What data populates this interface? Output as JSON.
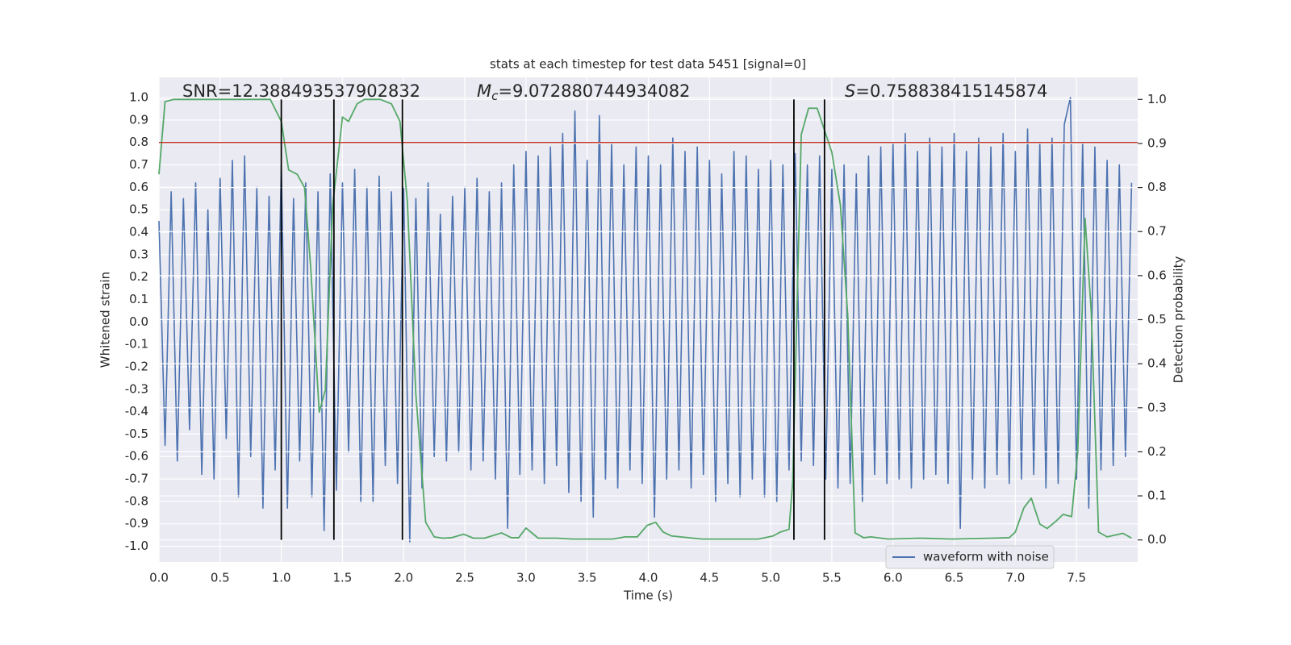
{
  "chart_data": {
    "type": "line",
    "title": "stats at each timestep for test data 5451 [signal=0]",
    "xlabel": "Time (s)",
    "ylabel": "Whitened strain",
    "y2label": "Detection probability",
    "xlim": [
      0,
      8
    ],
    "xticks": [
      {
        "value": 0,
        "label": "0.0"
      },
      {
        "value": 0.5,
        "label": "0.5"
      },
      {
        "value": 1,
        "label": "1.0"
      },
      {
        "value": 1.5,
        "label": "1.5"
      },
      {
        "value": 2,
        "label": "2.0"
      },
      {
        "value": 2.5,
        "label": "2.5"
      },
      {
        "value": 3,
        "label": "3.0"
      },
      {
        "value": 3.5,
        "label": "3.5"
      },
      {
        "value": 4,
        "label": "4.0"
      },
      {
        "value": 4.5,
        "label": "4.5"
      },
      {
        "value": 5,
        "label": "5.0"
      },
      {
        "value": 5.5,
        "label": "5.5"
      },
      {
        "value": 6,
        "label": "6.0"
      },
      {
        "value": 6.5,
        "label": "6.5"
      },
      {
        "value": 7,
        "label": "7.0"
      },
      {
        "value": 7.5,
        "label": "7.5"
      }
    ],
    "ylim": [
      -1.07,
      1.09
    ],
    "yticks": [
      {
        "value": 1,
        "label": "1.0"
      },
      0.9,
      0.8,
      0.7,
      0.6,
      0.5,
      0.4,
      0.3,
      0.2,
      0.1,
      {
        "value": 0,
        "label": "0.0"
      },
      -0.1,
      -0.2,
      -0.3,
      -0.4,
      -0.5,
      -0.6,
      -0.7,
      -0.8,
      -0.9,
      {
        "value": -1,
        "label": "-1.0"
      }
    ],
    "y2lim": [
      -0.05,
      1.05
    ],
    "y2ticks": [
      {
        "value": 0,
        "label": "0.0"
      },
      0.1,
      0.2,
      0.3,
      0.4,
      0.5,
      0.6,
      0.7,
      0.8,
      0.9,
      {
        "value": 1,
        "label": "1.0"
      }
    ],
    "grid": true,
    "legend": "lower right",
    "series": [
      {
        "name": "waveform with noise",
        "color": "#4c72b0",
        "x": [
          0,
          0.05,
          0.1,
          0.15,
          0.2,
          0.25,
          0.3,
          0.35,
          0.4,
          0.45,
          0.5,
          0.55,
          0.6,
          0.65,
          0.7,
          0.75,
          0.8,
          0.85,
          0.9,
          0.95,
          1,
          1.05,
          1.1,
          1.15,
          1.2,
          1.25,
          1.3,
          1.35,
          1.4,
          1.45,
          1.5,
          1.55,
          1.6,
          1.65,
          1.7,
          1.75,
          1.8,
          1.85,
          1.9,
          1.95,
          2,
          2.05,
          2.1,
          2.15,
          2.2,
          2.25,
          2.3,
          2.35,
          2.4,
          2.45,
          2.5,
          2.55,
          2.6,
          2.65,
          2.7,
          2.75,
          2.8,
          2.85,
          2.9,
          2.95,
          3,
          3.05,
          3.1,
          3.15,
          3.2,
          3.25,
          3.3,
          3.35,
          3.4,
          3.45,
          3.5,
          3.55,
          3.6,
          3.65,
          3.7,
          3.75,
          3.8,
          3.85,
          3.9,
          3.95,
          4,
          4.05,
          4.1,
          4.15,
          4.2,
          4.25,
          4.3,
          4.35,
          4.4,
          4.45,
          4.5,
          4.55,
          4.6,
          4.65,
          4.7,
          4.75,
          4.8,
          4.85,
          4.9,
          4.95,
          5,
          5.05,
          5.1,
          5.15,
          5.2,
          5.25,
          5.3,
          5.35,
          5.4,
          5.45,
          5.5,
          5.55,
          5.6,
          5.65,
          5.7,
          5.75,
          5.8,
          5.85,
          5.9,
          5.95,
          6,
          6.05,
          6.1,
          6.15,
          6.2,
          6.25,
          6.3,
          6.35,
          6.4,
          6.45,
          6.5,
          6.55,
          6.6,
          6.65,
          6.7,
          6.75,
          6.8,
          6.85,
          6.9,
          6.95,
          7,
          7.05,
          7.1,
          7.15,
          7.2,
          7.25,
          7.3,
          7.35,
          7.4,
          7.45,
          7.5,
          7.55,
          7.6,
          7.65,
          7.7,
          7.75,
          7.8,
          7.85,
          7.9,
          7.95
        ],
        "values": [
          0.45,
          -0.55,
          0.58,
          -0.62,
          0.55,
          -0.48,
          0.62,
          -0.68,
          0.5,
          -0.7,
          0.64,
          -0.52,
          0.72,
          -0.78,
          0.74,
          -0.6,
          0.6,
          -0.83,
          0.56,
          -0.66,
          0.7,
          -0.83,
          0.55,
          -0.62,
          0.62,
          -0.78,
          0.58,
          -0.93,
          0.66,
          -0.75,
          0.62,
          -0.58,
          0.68,
          -0.8,
          0.6,
          -0.8,
          0.65,
          -0.64,
          0.58,
          -0.72,
          0.6,
          -0.98,
          0.55,
          -0.74,
          0.62,
          -0.6,
          0.48,
          -0.62,
          0.56,
          -0.58,
          0.6,
          -0.66,
          0.64,
          -0.62,
          0.58,
          -0.7,
          0.62,
          -0.92,
          0.7,
          -0.68,
          0.76,
          -0.66,
          0.74,
          -0.72,
          0.78,
          -0.64,
          0.84,
          -0.76,
          0.94,
          -0.8,
          0.72,
          -0.87,
          0.92,
          -0.7,
          0.8,
          -0.74,
          0.7,
          -0.66,
          0.78,
          -0.72,
          0.74,
          -0.87,
          0.7,
          -0.7,
          0.82,
          -0.66,
          0.76,
          -0.74,
          0.78,
          -0.68,
          0.72,
          -0.8,
          0.66,
          -0.72,
          0.76,
          -0.78,
          0.74,
          -0.7,
          0.68,
          -0.78,
          0.72,
          -0.8,
          0.7,
          -0.66,
          0.75,
          -0.62,
          0.7,
          -0.64,
          0.74,
          -0.7,
          0.68,
          -0.74,
          0.7,
          -0.72,
          0.66,
          -0.8,
          0.74,
          -0.68,
          0.78,
          -0.72,
          0.8,
          -0.7,
          0.84,
          -0.74,
          0.76,
          -0.7,
          0.82,
          -0.68,
          0.78,
          -0.72,
          0.84,
          -0.92,
          0.76,
          -0.7,
          0.82,
          -0.74,
          0.78,
          -0.68,
          0.84,
          -0.72,
          0.76,
          -0.7,
          0.86,
          -0.68,
          0.8,
          -0.74,
          0.82,
          -0.72,
          0.88,
          1.0,
          -0.7,
          0.8,
          -0.83,
          0.78,
          -0.66,
          0.72,
          -0.64,
          0.7,
          -0.6,
          0.62
        ]
      },
      {
        "color": "#55a868",
        "axis": "y2",
        "x": [
          0,
          0.05,
          0.12,
          0.91,
          1.0,
          1.06,
          1.13,
          1.19,
          1.24,
          1.31,
          1.36,
          1.42,
          1.5,
          1.55,
          1.62,
          1.68,
          1.81,
          1.9,
          1.97,
          2.03,
          2.1,
          2.18,
          2.25,
          2.32,
          2.39,
          2.49,
          2.57,
          2.66,
          2.72,
          2.8,
          2.88,
          2.94,
          3.0,
          3.1,
          3.25,
          3.38,
          3.58,
          3.71,
          3.81,
          3.91,
          3.99,
          4.06,
          4.12,
          4.19,
          4.44,
          4.9,
          5.02,
          5.08,
          5.15,
          5.18,
          5.25,
          5.31,
          5.38,
          5.44,
          5.5,
          5.57,
          5.63,
          5.69,
          5.76,
          5.82,
          5.96,
          6.22,
          6.48,
          6.81,
          6.95,
          7.0,
          7.07,
          7.13,
          7.2,
          7.26,
          7.33,
          7.39,
          7.46,
          7.51,
          7.57,
          7.62,
          7.68,
          7.75,
          7.88,
          7.95
        ],
        "values": [
          0.83,
          0.995,
          1.0,
          1.0,
          0.95,
          0.84,
          0.83,
          0.8,
          0.62,
          0.29,
          0.34,
          0.76,
          0.96,
          0.95,
          0.99,
          1.0,
          1.0,
          0.99,
          0.95,
          0.77,
          0.33,
          0.04,
          0.007,
          0.004,
          0.005,
          0.013,
          0.004,
          0.004,
          0.009,
          0.016,
          0.005,
          0.005,
          0.027,
          0.004,
          0.004,
          0.002,
          0.002,
          0.002,
          0.007,
          0.007,
          0.033,
          0.04,
          0.018,
          0.009,
          0.002,
          0.002,
          0.009,
          0.018,
          0.024,
          0.13,
          0.92,
          0.98,
          0.98,
          0.93,
          0.88,
          0.76,
          0.51,
          0.016,
          0.005,
          0.007,
          0.002,
          0.004,
          0.002,
          0.004,
          0.005,
          0.018,
          0.073,
          0.095,
          0.036,
          0.026,
          0.042,
          0.058,
          0.053,
          0.2,
          0.73,
          0.52,
          0.018,
          0.007,
          0.015,
          0.004
        ]
      }
    ],
    "hline": {
      "value": 0.8,
      "color": "#c0392b"
    },
    "vlines": {
      "x": [
        1.0,
        1.43,
        1.99,
        5.19,
        5.44
      ],
      "y2span": [
        0,
        1
      ],
      "color": "#000000"
    },
    "annotations": [
      {
        "text": "SNR=12.388493537902832"
      },
      {
        "symbol": "M",
        "subscript": "c",
        "text": "=9.072880744934082"
      },
      {
        "symbol": "S",
        "text": "=0.758838415145874"
      }
    ]
  }
}
